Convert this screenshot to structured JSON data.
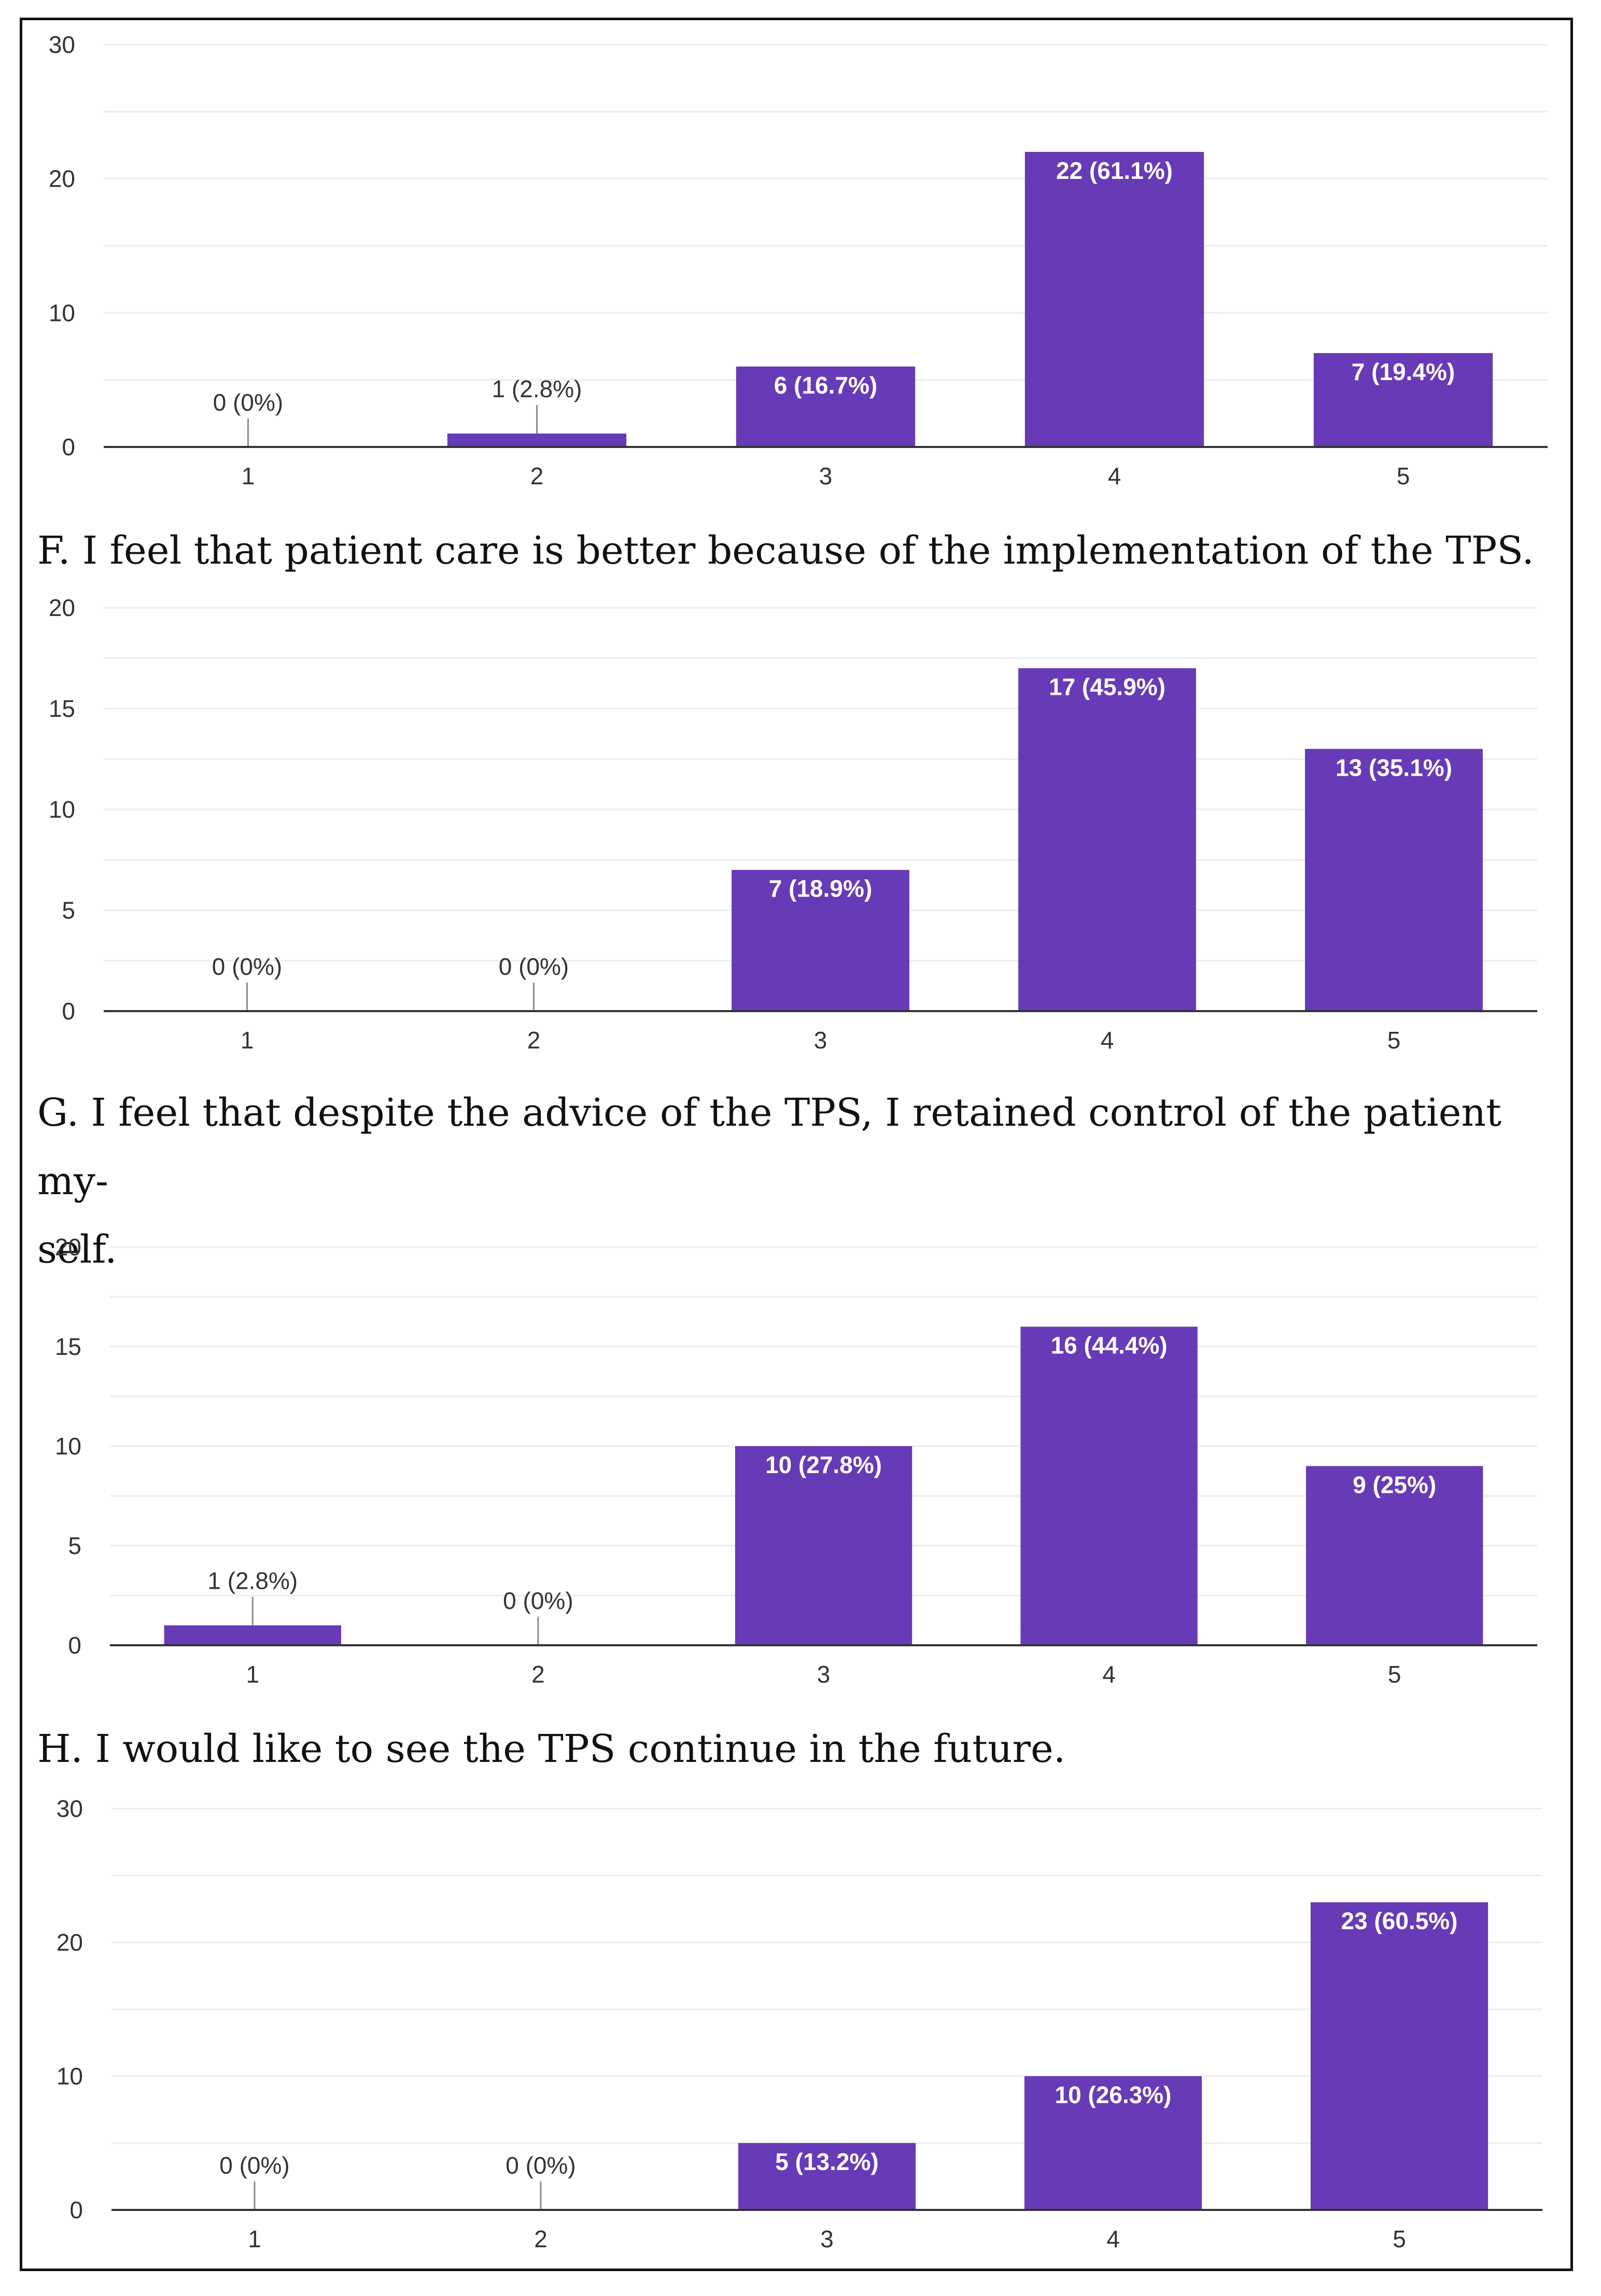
{
  "colors": {
    "bar": "#673ab7",
    "bar_label_inside": "#ffffff",
    "bar_label_outside": "#333333",
    "gridline": "#ececec",
    "axis": "#333333",
    "leader": "#8a8a8a"
  },
  "captions": {
    "f": "F. I feel that patient care is better because of the implementation of the TPS.",
    "g": "G. I feel that despite the advice of the TPS, I retained control of the patient my-\nself.",
    "h": "H. I would like to see the TPS continue in the future."
  },
  "chart_data": [
    {
      "type": "bar",
      "id": "E",
      "title": "",
      "categories": [
        "1",
        "2",
        "3",
        "4",
        "5"
      ],
      "values": [
        0,
        1,
        6,
        22,
        7
      ],
      "labels": [
        "0 (0%)",
        "1 (2.8%)",
        "6 (16.7%)",
        "22 (61.1%)",
        "7 (19.4%)"
      ],
      "yticks": [
        0,
        10,
        20,
        30
      ],
      "ylim": [
        0,
        30
      ],
      "xlabel": "",
      "ylabel": ""
    },
    {
      "type": "bar",
      "id": "F",
      "title": "F. I feel that patient care is better because of the implementation of the TPS.",
      "categories": [
        "1",
        "2",
        "3",
        "4",
        "5"
      ],
      "values": [
        0,
        0,
        7,
        17,
        13
      ],
      "labels": [
        "0 (0%)",
        "0 (0%)",
        "7 (18.9%)",
        "17 (45.9%)",
        "13 (35.1%)"
      ],
      "yticks": [
        0,
        5,
        10,
        15,
        20
      ],
      "ylim": [
        0,
        20
      ],
      "xlabel": "",
      "ylabel": ""
    },
    {
      "type": "bar",
      "id": "G",
      "title": "G. I feel that despite the advice of the TPS, I retained control of the patient myself.",
      "categories": [
        "1",
        "2",
        "3",
        "4",
        "5"
      ],
      "values": [
        1,
        0,
        10,
        16,
        9
      ],
      "labels": [
        "1 (2.8%)",
        "0 (0%)",
        "10 (27.8%)",
        "16 (44.4%)",
        "9 (25%)"
      ],
      "yticks": [
        0,
        5,
        10,
        15,
        20
      ],
      "ylim": [
        0,
        20
      ],
      "xlabel": "",
      "ylabel": ""
    },
    {
      "type": "bar",
      "id": "H",
      "title": "H. I would like to see the TPS continue in the future.",
      "categories": [
        "1",
        "2",
        "3",
        "4",
        "5"
      ],
      "values": [
        0,
        0,
        5,
        10,
        23
      ],
      "labels": [
        "0 (0%)",
        "0 (0%)",
        "5 (13.2%)",
        "10 (26.3%)",
        "23 (60.5%)"
      ],
      "yticks": [
        0,
        10,
        20,
        30
      ],
      "ylim": [
        0,
        30
      ],
      "xlabel": "",
      "ylabel": ""
    }
  ]
}
